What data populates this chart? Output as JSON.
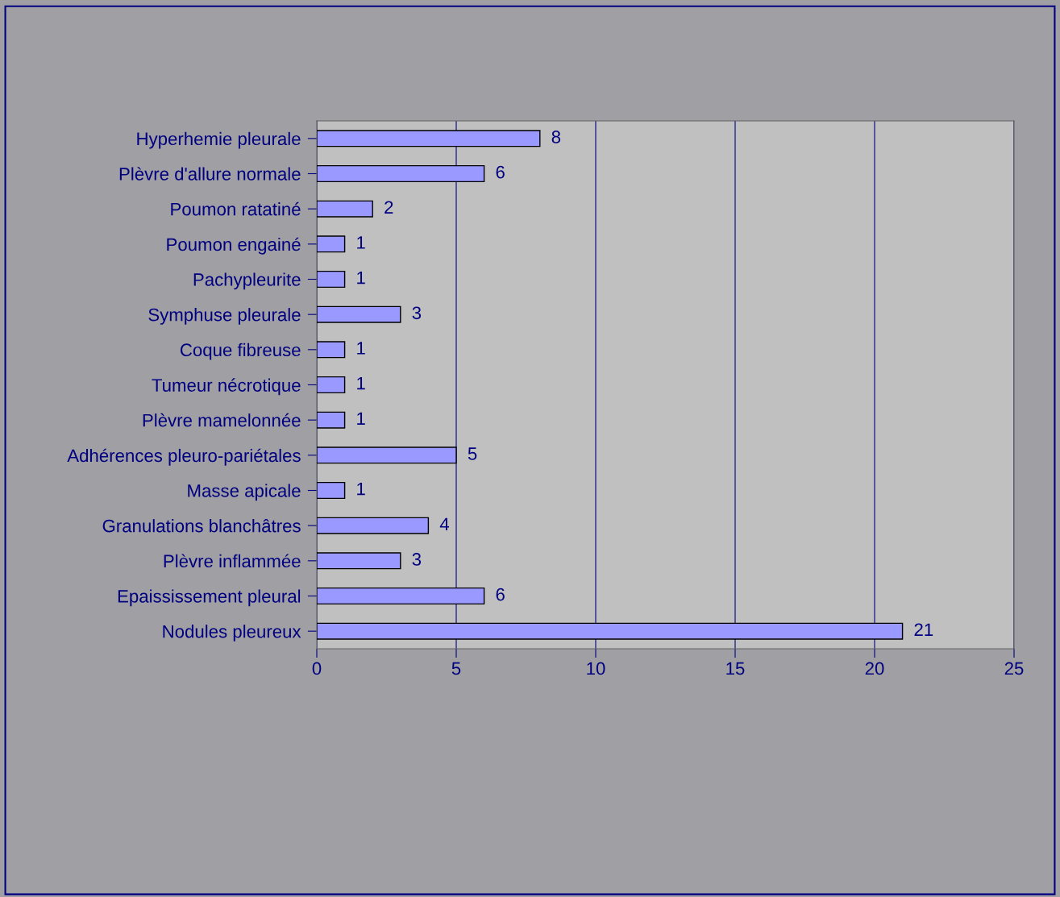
{
  "chart_data": {
    "type": "bar",
    "orientation": "horizontal",
    "categories": [
      "Hyperhemie pleurale",
      "Plèvre d'allure normale",
      "Poumon ratatiné",
      "Poumon engainé",
      "Pachypleurite",
      "Symphuse pleurale",
      "Coque fibreuse",
      "Tumeur nécrotique",
      "Plèvre mamelonnée",
      "Adhérences pleuro-pariétales",
      "Masse apicale",
      "Granulations blanchâtres",
      "Plèvre inflammée",
      "Epaississement pleural",
      "Nodules pleureux"
    ],
    "values": [
      8,
      6,
      2,
      1,
      1,
      3,
      1,
      1,
      1,
      5,
      1,
      4,
      3,
      6,
      21
    ],
    "color": "#9999ff",
    "xlim": [
      0,
      25
    ],
    "xticks": [
      0,
      5,
      10,
      15,
      20,
      25
    ],
    "grid": "x",
    "data_labels": true
  }
}
